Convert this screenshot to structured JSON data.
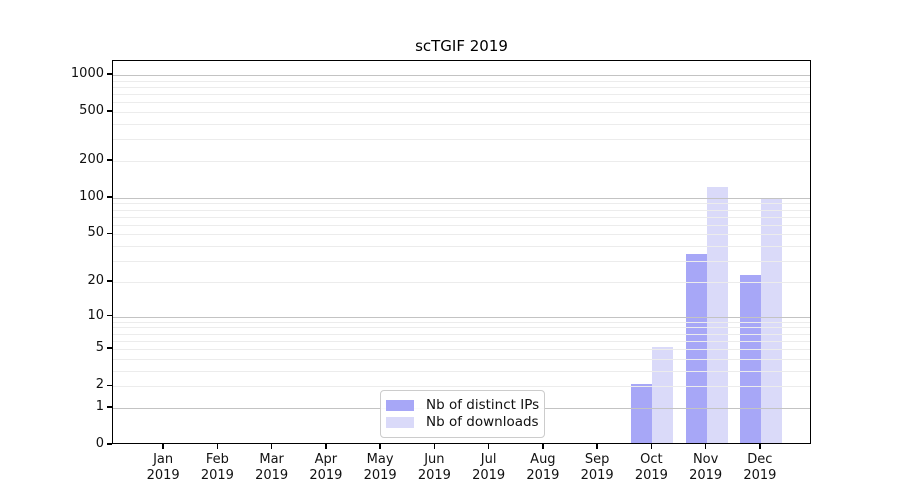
{
  "title": "scTGIF 2019",
  "chart_data": {
    "type": "bar",
    "title": "scTGIF 2019",
    "categories": [
      "Jan",
      "Feb",
      "Mar",
      "Apr",
      "May",
      "Jun",
      "Jul",
      "Aug",
      "Sep",
      "Oct",
      "Nov",
      "Dec"
    ],
    "year_label": "2019",
    "xlabel": "",
    "ylabel": "",
    "yscale": "log1p",
    "ylim": [
      0,
      1300
    ],
    "yticks": [
      0,
      1,
      2,
      5,
      10,
      20,
      50,
      100,
      200,
      500,
      1000
    ],
    "grid": {
      "major": [
        1,
        10,
        100,
        1000
      ],
      "minor": [
        2,
        3,
        4,
        5,
        6,
        7,
        8,
        9,
        20,
        30,
        40,
        50,
        60,
        70,
        80,
        90,
        200,
        300,
        400,
        500,
        600,
        700,
        800,
        900
      ]
    },
    "series": [
      {
        "name": "Nb of distinct IPs",
        "key": "distinct-ips",
        "color": "#a7a7f7",
        "values": [
          0,
          0,
          0,
          0,
          0,
          0,
          0,
          0,
          0,
          2,
          33,
          22
        ]
      },
      {
        "name": "Nb of downloads",
        "key": "downloads",
        "color": "#dadaf9",
        "values": [
          0,
          0,
          0,
          0,
          0,
          0,
          0,
          0,
          0,
          5,
          119,
          94
        ]
      }
    ],
    "legend_position": "lower center"
  },
  "colors": {
    "background": "#ffffff",
    "axis": "#000000",
    "grid_major": "#c3c3c3",
    "grid_minor": "#ececec",
    "text": "#111111",
    "legend_border": "#cccccc"
  }
}
